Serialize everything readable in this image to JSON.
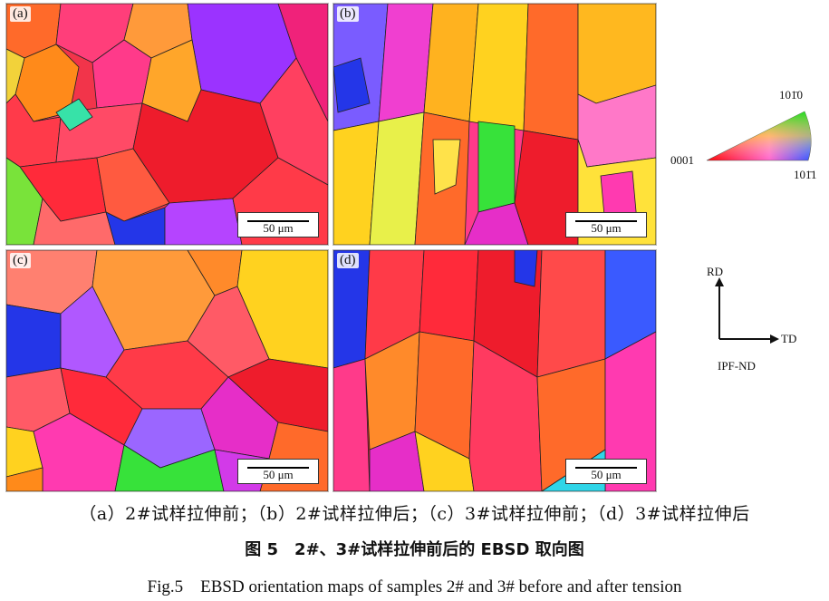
{
  "panels": [
    {
      "label": "(a)",
      "scale": "50 μm"
    },
    {
      "label": "(b)",
      "scale": "50 μm"
    },
    {
      "label": "(c)",
      "scale": "50 μm"
    },
    {
      "label": "(d)",
      "scale": "50 μm"
    }
  ],
  "ipf_legend": {
    "corner_0001": "0001",
    "corner_10m10": "101̄0",
    "corner_10m11": "101̄1"
  },
  "axes": {
    "rd": "RD",
    "td": "TD",
    "ipf": "IPF-ND"
  },
  "captions": {
    "sub": "（a）2#试样拉伸前；（b）2#试样拉伸后；（c）3#试样拉伸前；（d）3#试样拉伸后",
    "cn": "图 5　2#、3#试样拉伸前后的 EBSD 取向图",
    "en": "Fig.5　EBSD orientation maps of samples 2# and 3# before and after tension"
  },
  "colors": {
    "red": "#ee1c2c",
    "pink": "#ff3d8a",
    "magenta": "#e62ec8",
    "purple": "#9b33ff",
    "orange": "#ff6a2a",
    "yellow": "#ffd21f",
    "green": "#37e23a",
    "blue": "#2436e8",
    "cyan": "#2fd5e8",
    "salmon": "#ff8070"
  }
}
